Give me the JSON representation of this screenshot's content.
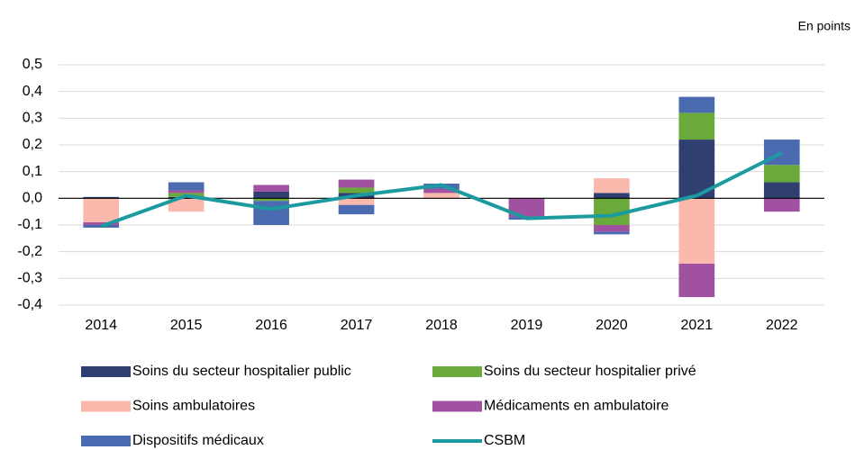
{
  "chart_data": {
    "type": "bar",
    "stacked": true,
    "note": "En points",
    "categories": [
      "2014",
      "2015",
      "2016",
      "2017",
      "2018",
      "2019",
      "2020",
      "2021",
      "2022"
    ],
    "series": [
      {
        "name": "Soins du secteur hospitalier public",
        "color": "#2e3f70",
        "values": [
          0.005,
          0.005,
          0.025,
          0.02,
          0,
          0,
          0.02,
          0.22,
          0.06
        ]
      },
      {
        "name": "Soins du secteur hospitalier privé",
        "color": "#6aaa3a",
        "values": [
          0,
          0.015,
          -0.01,
          0.02,
          0,
          0,
          -0.1,
          0.1,
          0.065
        ]
      },
      {
        "name": "Soins ambulatoires",
        "color": "#fbb8ad",
        "values": [
          -0.09,
          -0.05,
          0,
          -0.025,
          0.02,
          0,
          0.055,
          -0.245,
          0
        ]
      },
      {
        "name": "Médicaments en ambulatoire",
        "color": "#a052a0",
        "values": [
          -0.01,
          0.01,
          0.025,
          0.03,
          0.015,
          -0.07,
          -0.025,
          -0.125,
          -0.05
        ]
      },
      {
        "name": "Dispositifs médicaux",
        "color": "#4a6bb0",
        "values": [
          -0.01,
          0.03,
          -0.09,
          -0.035,
          0.02,
          -0.01,
          -0.01,
          0.06,
          0.095
        ]
      },
      {
        "name": "CSBM",
        "type": "line",
        "color": "#1c9aa0",
        "values": [
          -0.105,
          0.01,
          -0.04,
          0.01,
          0.05,
          -0.075,
          -0.065,
          0.01,
          0.17
        ]
      }
    ],
    "ylim": [
      -0.4,
      0.5
    ],
    "yticks": [
      {
        "value": 0.5,
        "label": "0,5"
      },
      {
        "value": 0.4,
        "label": "0,4"
      },
      {
        "value": 0.3,
        "label": "0,3"
      },
      {
        "value": 0.2,
        "label": "0,2"
      },
      {
        "value": 0.1,
        "label": "0,1"
      },
      {
        "value": 0,
        "label": "0,0"
      },
      {
        "value": -0.1,
        "label": "-0,1"
      },
      {
        "value": -0.2,
        "label": "-0,2"
      },
      {
        "value": -0.3,
        "label": "-0,3"
      },
      {
        "value": -0.4,
        "label": "-0,4"
      }
    ],
    "grid": true
  }
}
